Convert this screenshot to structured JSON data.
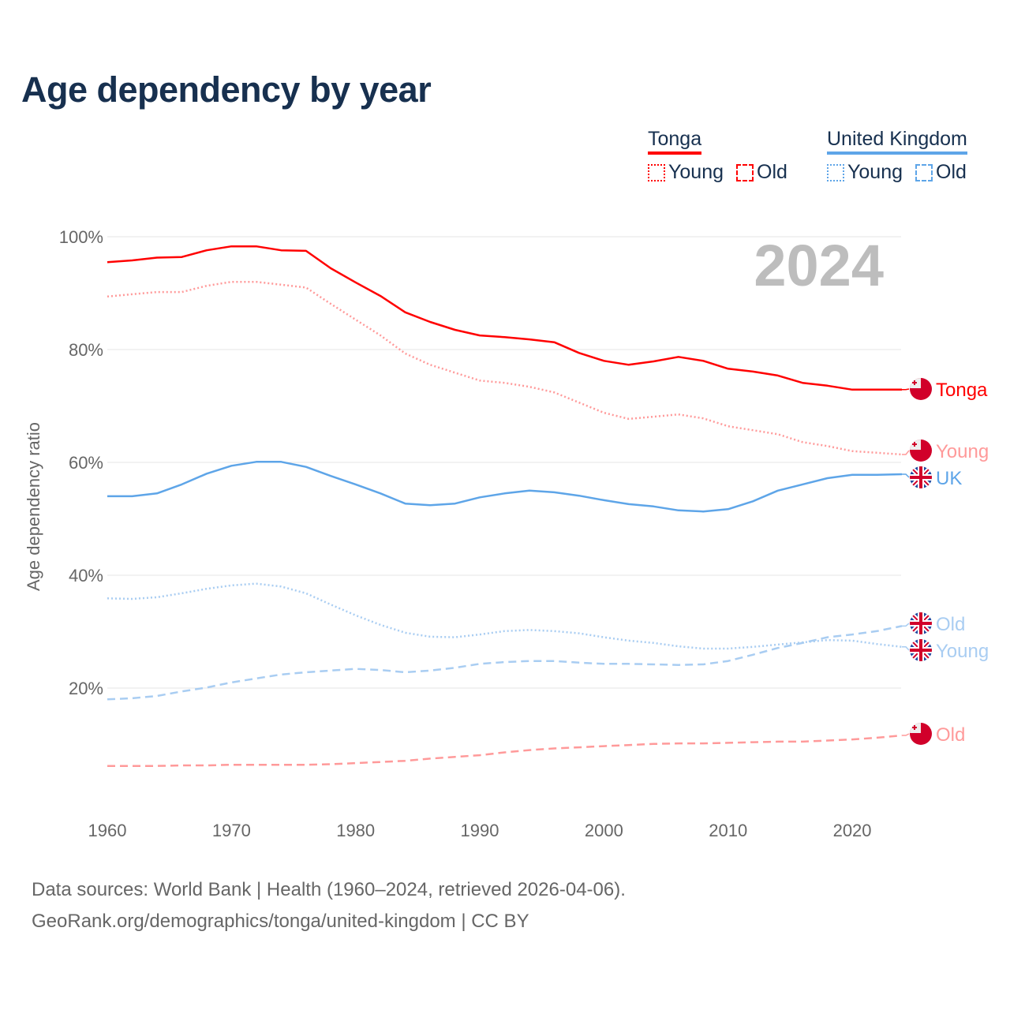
{
  "chart_data": {
    "type": "line",
    "title": "Age dependency by year",
    "xlabel": "",
    "ylabel": "Age dependency ratio",
    "year_watermark": "2024",
    "xlim": [
      1960,
      2024
    ],
    "ylim": [
      0,
      100
    ],
    "x_ticks": [
      "1960",
      "1970",
      "1980",
      "1990",
      "2000",
      "2010",
      "2020"
    ],
    "y_ticks": [
      "20%",
      "40%",
      "60%",
      "80%",
      "100%"
    ],
    "grid": true,
    "legend": {
      "placement": "top-right",
      "groups": [
        {
          "name": "Tonga",
          "items": [
            "Young",
            "Old"
          ]
        },
        {
          "name": "United Kingdom",
          "items": [
            "Young",
            "Old"
          ]
        }
      ]
    },
    "x": [
      1960,
      1962,
      1964,
      1966,
      1968,
      1970,
      1972,
      1974,
      1976,
      1978,
      1980,
      1982,
      1984,
      1986,
      1988,
      1990,
      1992,
      1994,
      1996,
      1998,
      2000,
      2002,
      2004,
      2006,
      2008,
      2010,
      2012,
      2014,
      2016,
      2018,
      2020,
      2022,
      2024
    ],
    "series": [
      {
        "name": "Tonga",
        "end_label": "Tonga",
        "style": "solid",
        "color": "#ff0000",
        "values": [
          95.5,
          95.8,
          96.3,
          96.4,
          97.6,
          98.3,
          98.3,
          97.6,
          97.5,
          94.4,
          91.9,
          89.5,
          86.6,
          84.9,
          83.5,
          82.5,
          82.2,
          81.8,
          81.3,
          79.4,
          78.0,
          77.3,
          77.9,
          78.7,
          78.0,
          76.6,
          76.1,
          75.4,
          74.1,
          73.6,
          72.9,
          72.9,
          72.9
        ]
      },
      {
        "name": "Tonga Young",
        "end_label": "Young",
        "style": "dotted",
        "color": "#ff9a9a",
        "values": [
          89.4,
          89.8,
          90.2,
          90.2,
          91.3,
          92.0,
          92.0,
          91.5,
          91.0,
          88.1,
          85.3,
          82.5,
          79.3,
          77.3,
          75.9,
          74.5,
          74.1,
          73.4,
          72.4,
          70.6,
          68.8,
          67.7,
          68.1,
          68.5,
          67.8,
          66.4,
          65.7,
          65.0,
          63.6,
          62.9,
          62.0,
          61.7,
          61.4
        ]
      },
      {
        "name": "Tonga Old",
        "end_label": "Old",
        "style": "dashed",
        "color": "#ff9a9a",
        "values": [
          6.2,
          6.2,
          6.2,
          6.3,
          6.3,
          6.4,
          6.4,
          6.4,
          6.4,
          6.5,
          6.7,
          6.9,
          7.1,
          7.5,
          7.8,
          8.1,
          8.6,
          9.0,
          9.3,
          9.5,
          9.7,
          9.9,
          10.1,
          10.2,
          10.2,
          10.3,
          10.4,
          10.5,
          10.5,
          10.7,
          10.9,
          11.2,
          11.6
        ]
      },
      {
        "name": "United Kingdom",
        "end_label": "UK",
        "style": "solid",
        "color": "#5ea5e8",
        "values": [
          54.0,
          54.0,
          54.5,
          56.1,
          58.0,
          59.4,
          60.1,
          60.1,
          59.2,
          57.6,
          56.1,
          54.5,
          52.7,
          52.4,
          52.7,
          53.8,
          54.5,
          55.0,
          54.7,
          54.1,
          53.3,
          52.6,
          52.2,
          51.5,
          51.3,
          51.7,
          53.1,
          55.0,
          56.1,
          57.2,
          57.8,
          57.8,
          57.9
        ]
      },
      {
        "name": "United Kingdom Young",
        "end_label": "Young",
        "style": "dotted",
        "color": "#a9cdf2",
        "values": [
          35.9,
          35.8,
          36.1,
          36.8,
          37.6,
          38.2,
          38.5,
          38.0,
          36.8,
          34.8,
          32.9,
          31.2,
          29.8,
          29.1,
          29.0,
          29.5,
          30.1,
          30.3,
          30.1,
          29.7,
          29.0,
          28.4,
          28.0,
          27.4,
          27.0,
          27.0,
          27.3,
          27.7,
          28.1,
          28.5,
          28.4,
          27.8,
          27.3
        ]
      },
      {
        "name": "United Kingdom Old",
        "end_label": "Old",
        "style": "dashed",
        "color": "#a9cdf2",
        "values": [
          18.0,
          18.2,
          18.6,
          19.4,
          20.1,
          21.0,
          21.7,
          22.4,
          22.8,
          23.1,
          23.4,
          23.2,
          22.8,
          23.1,
          23.6,
          24.3,
          24.6,
          24.8,
          24.8,
          24.5,
          24.3,
          24.3,
          24.2,
          24.1,
          24.2,
          24.8,
          25.9,
          27.1,
          28.0,
          29.0,
          29.5,
          30.1,
          31.0
        ]
      }
    ]
  },
  "colors": {
    "title": "#17304f",
    "tonga": "#ff0000",
    "tonga_light": "#ff9a9a",
    "uk": "#5ea5e8",
    "uk_light": "#a9cdf2"
  },
  "legend_labels": {
    "tonga": "Tonga",
    "uk": "United Kingdom",
    "young": "Young",
    "old": "Old"
  },
  "source": {
    "line1": "Data sources: World Bank | Health (1960–2024, retrieved 2026-04-06).",
    "line2": "GeoRank.org/demographics/tonga/united-kingdom | CC BY"
  }
}
